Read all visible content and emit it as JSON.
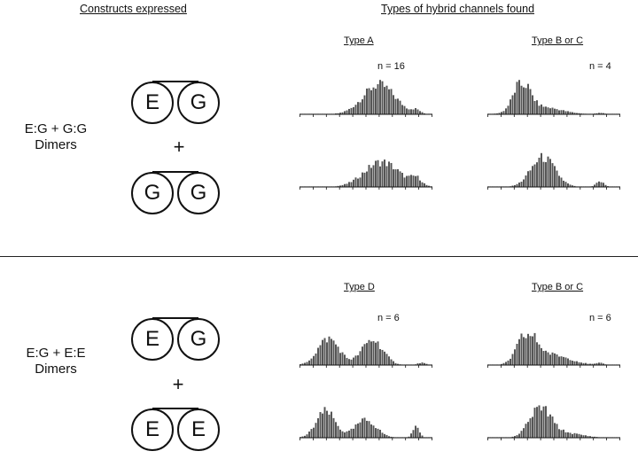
{
  "headers": {
    "constructs": "Constructs expressed",
    "types": "Types of hybrid channels found"
  },
  "panels": [
    {
      "combo_line1": "E:G + G:G",
      "combo_line2": "Dimers",
      "plus": "+",
      "dimer1": [
        "E",
        "G"
      ],
      "dimer2": [
        "G",
        "G"
      ],
      "type_left": "Type A",
      "type_right": "Type B or C",
      "n_left": "n = 16",
      "n_right": "n = 4"
    },
    {
      "combo_line1": "E:G + E:E",
      "combo_line2": "Dimers",
      "plus": "+",
      "dimer1": [
        "E",
        "G"
      ],
      "dimer2": [
        "E",
        "E"
      ],
      "type_left": "Type D",
      "type_right": "Type B or C",
      "n_left": "n = 6",
      "n_right": "n = 6"
    }
  ],
  "histograms": {
    "bins": 60,
    "bar_color": "#555555",
    "ticks": 11,
    "plots": [
      {
        "id": "hist-type-a-1",
        "peaks": [
          [
            0.6,
            0.12,
            1.0
          ],
          [
            0.88,
            0.03,
            0.12
          ]
        ]
      },
      {
        "id": "hist-type-a-2",
        "peaks": [
          [
            0.62,
            0.13,
            0.85
          ],
          [
            0.88,
            0.04,
            0.25
          ]
        ]
      },
      {
        "id": "hist-type-bc-1",
        "peaks": [
          [
            0.26,
            0.06,
            1.0
          ],
          [
            0.4,
            0.15,
            0.25
          ],
          [
            0.85,
            0.03,
            0.05
          ]
        ]
      },
      {
        "id": "hist-type-bc-2",
        "peaks": [
          [
            0.42,
            0.09,
            1.0
          ],
          [
            0.85,
            0.03,
            0.18
          ]
        ]
      },
      {
        "id": "hist-type-d-1",
        "peaks": [
          [
            0.22,
            0.08,
            0.9
          ],
          [
            0.55,
            0.08,
            0.85
          ],
          [
            0.92,
            0.03,
            0.08
          ]
        ]
      },
      {
        "id": "hist-type-d-2",
        "peaks": [
          [
            0.2,
            0.07,
            0.9
          ],
          [
            0.5,
            0.08,
            0.6
          ],
          [
            0.88,
            0.025,
            0.4
          ]
        ]
      },
      {
        "id": "hist-type-bc-3",
        "peaks": [
          [
            0.3,
            0.07,
            1.0
          ],
          [
            0.48,
            0.14,
            0.35
          ],
          [
            0.85,
            0.03,
            0.06
          ]
        ]
      },
      {
        "id": "hist-type-bc-4",
        "peaks": [
          [
            0.4,
            0.08,
            1.0
          ],
          [
            0.6,
            0.12,
            0.15
          ]
        ]
      }
    ]
  }
}
